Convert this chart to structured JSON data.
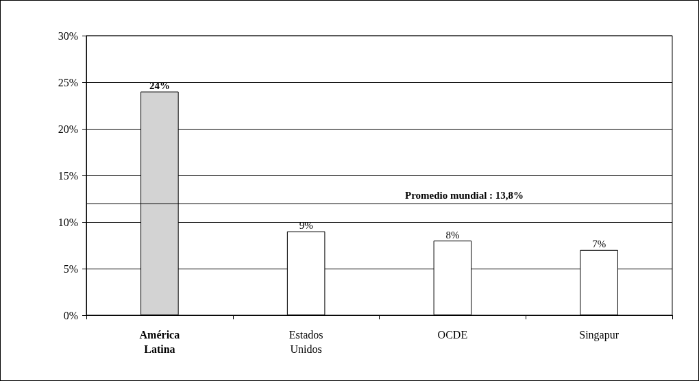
{
  "chart_data": {
    "type": "bar",
    "categories": [
      "América\nLatina",
      "Estados\nUnidos",
      "OCDE",
      "Singapur"
    ],
    "values": [
      24,
      9,
      8,
      7
    ],
    "colors": [
      "#d3d3d3",
      "#ffffff",
      "#ffffff",
      "#ffffff"
    ],
    "value_labels": [
      "24%",
      "9%",
      "8%",
      "7%"
    ],
    "ylim": [
      0,
      30
    ],
    "yticks": [
      {
        "value": 0,
        "label": "0%"
      },
      {
        "value": 5,
        "label": "5%"
      },
      {
        "value": 10,
        "label": "10%"
      },
      {
        "value": 15,
        "label": "15%"
      },
      {
        "value": 20,
        "label": "20%"
      },
      {
        "value": 25,
        "label": "25%"
      },
      {
        "value": 30,
        "label": "30%"
      }
    ],
    "grid": "y",
    "ref_lines": [
      {
        "axis": "y",
        "value": 12,
        "color": "#000000"
      }
    ],
    "annotations": [
      "Promedio mundial : 13,8%"
    ]
  }
}
